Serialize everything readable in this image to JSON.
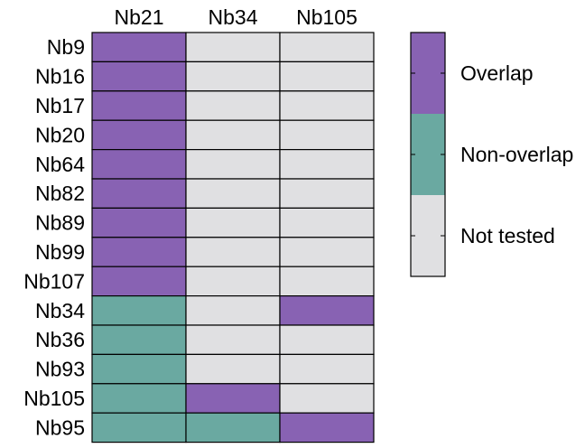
{
  "chart_data": {
    "type": "heatmap",
    "columns": [
      "Nb21",
      "Nb34",
      "Nb105"
    ],
    "rows": [
      "Nb9",
      "Nb16",
      "Nb17",
      "Nb20",
      "Nb64",
      "Nb82",
      "Nb89",
      "Nb99",
      "Nb107",
      "Nb34",
      "Nb36",
      "Nb93",
      "Nb105",
      "Nb95"
    ],
    "values": [
      [
        "Overlap",
        "Not tested",
        "Not tested"
      ],
      [
        "Overlap",
        "Not tested",
        "Not tested"
      ],
      [
        "Overlap",
        "Not tested",
        "Not tested"
      ],
      [
        "Overlap",
        "Not tested",
        "Not tested"
      ],
      [
        "Overlap",
        "Not tested",
        "Not tested"
      ],
      [
        "Overlap",
        "Not tested",
        "Not tested"
      ],
      [
        "Overlap",
        "Not tested",
        "Not tested"
      ],
      [
        "Overlap",
        "Not tested",
        "Not tested"
      ],
      [
        "Overlap",
        "Not tested",
        "Not tested"
      ],
      [
        "Non-overlap",
        "Not tested",
        "Overlap"
      ],
      [
        "Non-overlap",
        "Not tested",
        "Not tested"
      ],
      [
        "Non-overlap",
        "Not tested",
        "Not tested"
      ],
      [
        "Non-overlap",
        "Overlap",
        "Not tested"
      ],
      [
        "Non-overlap",
        "Non-overlap",
        "Overlap"
      ]
    ],
    "legend": {
      "placement": "right",
      "items": [
        {
          "label": "Overlap",
          "color": "#8862b3"
        },
        {
          "label": "Non-overlap",
          "color": "#6aa9a1"
        },
        {
          "label": "Not tested",
          "color": "#e0e0e2"
        }
      ]
    }
  }
}
